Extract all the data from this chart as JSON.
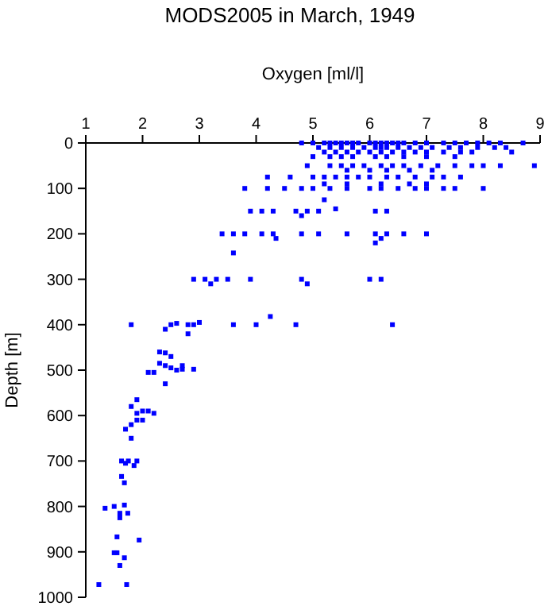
{
  "chart_data": {
    "type": "scatter",
    "title": "MODS2005 in March, 1949",
    "xlabel": "Oxygen [ml/l]",
    "ylabel": "Depth [m]",
    "xlim": [
      1,
      9
    ],
    "ylim": [
      1000,
      0
    ],
    "xticks": [
      1,
      2,
      3,
      4,
      5,
      6,
      7,
      8,
      9
    ],
    "yticks": [
      0,
      100,
      200,
      300,
      400,
      500,
      600,
      700,
      800,
      900,
      1000
    ],
    "grid": false,
    "marker": "square",
    "series": [
      {
        "color": "#0000ff",
        "x": [
          4.8,
          5.0,
          5.2,
          5.3,
          5.4,
          5.5,
          5.6,
          5.7,
          5.8,
          6.0,
          6.1,
          6.2,
          6.3,
          6.4,
          6.5,
          6.6,
          6.8,
          7.0,
          7.3,
          7.5,
          7.7,
          7.9,
          8.1,
          8.3,
          8.7,
          5.1,
          5.3,
          5.5,
          5.7,
          5.9,
          6.1,
          6.2,
          6.3,
          6.5,
          6.7,
          6.9,
          7.1,
          7.4,
          7.6,
          7.9,
          8.2,
          8.4,
          5.2,
          5.4,
          5.6,
          5.8,
          6.0,
          6.2,
          6.4,
          6.6,
          6.8,
          7.0,
          7.3,
          7.6,
          7.8,
          8.5,
          5.0,
          5.3,
          5.5,
          5.7,
          6.1,
          6.3,
          6.6,
          7.0,
          7.5,
          4.9,
          5.3,
          5.5,
          5.7,
          5.9,
          6.2,
          6.4,
          6.6,
          6.9,
          7.2,
          7.5,
          7.8,
          8.0,
          8.3,
          8.9,
          5.6,
          6.0,
          6.3,
          6.7,
          7.1,
          4.2,
          4.6,
          5.0,
          5.2,
          5.4,
          5.6,
          5.8,
          6.0,
          6.3,
          6.5,
          6.8,
          7.1,
          7.3,
          7.6,
          5.2,
          5.6,
          6.2,
          6.7,
          7.0,
          3.8,
          4.2,
          4.5,
          4.8,
          5.0,
          5.3,
          5.6,
          6.0,
          6.2,
          6.5,
          6.8,
          7.0,
          7.3,
          7.5,
          8.0,
          5.2,
          3.9,
          4.1,
          4.3,
          4.7,
          4.9,
          5.1,
          6.1,
          6.3,
          4.8,
          5.4,
          3.4,
          3.6,
          3.8,
          4.1,
          4.3,
          4.8,
          5.1,
          5.6,
          6.1,
          6.3,
          6.6,
          7.0,
          4.35,
          6.2,
          6.1,
          3.6,
          2.9,
          3.1,
          3.3,
          3.5,
          3.9,
          4.8,
          6.0,
          6.2,
          3.2,
          4.9,
          1.8,
          2.5,
          2.8,
          2.9,
          3.6,
          4.0,
          4.7,
          6.4,
          4.25,
          2.6,
          3.0,
          2.4,
          2.8,
          2.5,
          2.3,
          2.4,
          2.3,
          2.4,
          2.5,
          2.6,
          2.1,
          2.2,
          2.7,
          2.9,
          2.7,
          2.4,
          1.9,
          1.8,
          1.9,
          2.0,
          2.2,
          2.1,
          1.9,
          1.8,
          2.0,
          1.7,
          1.8,
          1.63,
          1.7,
          1.75,
          1.85,
          1.9,
          1.63,
          1.68,
          1.34,
          1.5,
          1.68,
          1.6,
          1.6,
          1.74,
          1.55,
          1.94,
          1.5,
          1.55,
          1.68,
          1.6,
          1.23,
          1.72
        ],
        "values": [
          0,
          0,
          0,
          0,
          0,
          0,
          0,
          0,
          0,
          0,
          0,
          0,
          0,
          0,
          0,
          0,
          0,
          0,
          0,
          0,
          0,
          0,
          0,
          0,
          0,
          10,
          10,
          10,
          10,
          10,
          10,
          10,
          10,
          10,
          10,
          10,
          10,
          10,
          10,
          10,
          10,
          10,
          20,
          20,
          20,
          20,
          20,
          20,
          20,
          20,
          20,
          20,
          20,
          20,
          20,
          20,
          30,
          30,
          30,
          30,
          30,
          30,
          30,
          30,
          30,
          50,
          50,
          50,
          50,
          50,
          50,
          50,
          50,
          50,
          50,
          50,
          50,
          50,
          50,
          50,
          60,
          60,
          60,
          60,
          60,
          75,
          75,
          75,
          75,
          75,
          75,
          75,
          75,
          75,
          75,
          75,
          75,
          75,
          75,
          90,
          90,
          90,
          90,
          90,
          100,
          100,
          100,
          100,
          100,
          100,
          100,
          100,
          100,
          100,
          100,
          100,
          100,
          100,
          100,
          125,
          150,
          150,
          150,
          150,
          150,
          150,
          150,
          150,
          160,
          145,
          200,
          200,
          200,
          200,
          200,
          200,
          200,
          200,
          200,
          200,
          200,
          200,
          210,
          210,
          220,
          242,
          300,
          300,
          300,
          300,
          300,
          300,
          300,
          300,
          310,
          310,
          400,
          400,
          400,
          400,
          400,
          400,
          400,
          400,
          382,
          397,
          395,
          410,
          420,
          470,
          460,
          462,
          485,
          490,
          495,
          500,
          505,
          505,
          498,
          498,
          490,
          530,
          565,
          580,
          595,
          590,
          595,
          590,
          610,
          620,
          610,
          630,
          650,
          700,
          705,
          700,
          710,
          700,
          734,
          748,
          804,
          800,
          797,
          815,
          825,
          815,
          867,
          874,
          902,
          902,
          913,
          930,
          972,
          972
        ]
      }
    ]
  }
}
